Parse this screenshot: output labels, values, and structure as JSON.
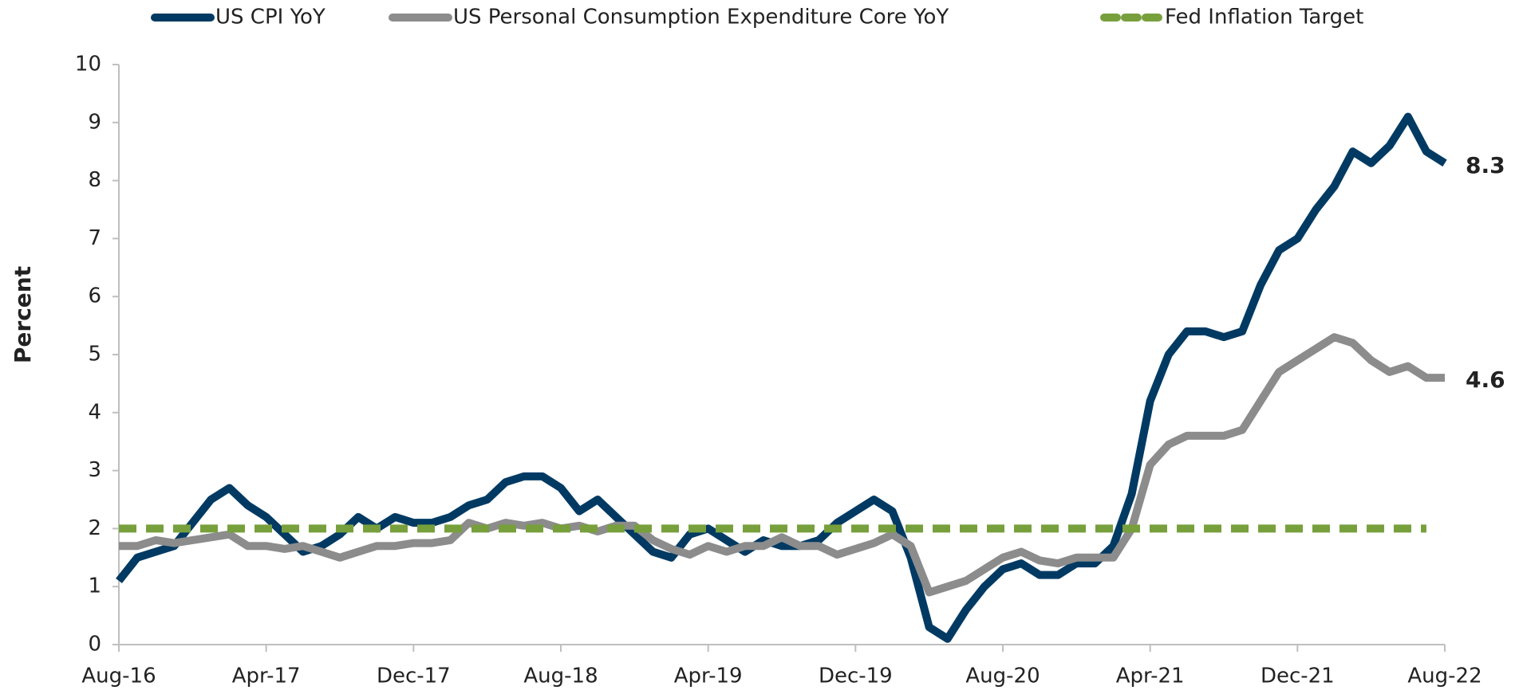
{
  "chart_data": {
    "type": "line",
    "y_label": "Percent",
    "categories": [
      "Aug-16",
      null,
      null,
      null,
      null,
      null,
      null,
      null,
      "Apr-17",
      null,
      null,
      null,
      null,
      null,
      null,
      null,
      "Dec-17",
      null,
      null,
      null,
      null,
      null,
      null,
      null,
      "Aug-18",
      null,
      null,
      null,
      null,
      null,
      null,
      null,
      "Apr-19",
      null,
      null,
      null,
      null,
      null,
      null,
      null,
      "Dec-19",
      null,
      null,
      null,
      null,
      null,
      null,
      null,
      "Aug-20",
      null,
      null,
      null,
      null,
      null,
      null,
      null,
      "Apr-21",
      null,
      null,
      null,
      null,
      null,
      null,
      null,
      "Dec-21",
      null,
      null,
      null,
      null,
      null,
      null,
      null,
      "Aug-22"
    ],
    "series": [
      {
        "name": "US CPI YoY",
        "color": "#003a63",
        "dash": false,
        "end_label": true,
        "values": [
          1.1,
          1.5,
          1.6,
          1.7,
          2.1,
          2.5,
          2.7,
          2.4,
          2.2,
          1.9,
          1.6,
          1.7,
          1.9,
          2.2,
          2.0,
          2.2,
          2.1,
          2.1,
          2.2,
          2.4,
          2.5,
          2.8,
          2.9,
          2.9,
          2.7,
          2.3,
          2.5,
          2.2,
          1.9,
          1.6,
          1.5,
          1.9,
          2.0,
          1.8,
          1.6,
          1.8,
          1.7,
          1.7,
          1.8,
          2.1,
          2.3,
          2.5,
          2.3,
          1.5,
          0.3,
          0.1,
          0.6,
          1.0,
          1.3,
          1.4,
          1.2,
          1.2,
          1.4,
          1.4,
          1.7,
          2.6,
          4.2,
          5.0,
          5.4,
          5.4,
          5.3,
          5.4,
          6.2,
          6.8,
          7.0,
          7.5,
          7.9,
          8.5,
          8.3,
          8.6,
          9.1,
          8.5,
          8.3
        ]
      },
      {
        "name": "US Personal Consumption Expenditure Core YoY",
        "color": "#8c8c8c",
        "dash": false,
        "end_label": true,
        "values": [
          1.7,
          1.7,
          1.8,
          1.75,
          1.8,
          1.85,
          1.9,
          1.7,
          1.7,
          1.65,
          1.7,
          1.6,
          1.5,
          1.6,
          1.7,
          1.7,
          1.75,
          1.75,
          1.8,
          2.1,
          2.0,
          2.1,
          2.05,
          2.1,
          2.0,
          2.05,
          1.95,
          2.05,
          2.05,
          1.8,
          1.65,
          1.55,
          1.7,
          1.6,
          1.7,
          1.7,
          1.85,
          1.7,
          1.7,
          1.55,
          1.65,
          1.75,
          1.9,
          1.7,
          0.9,
          1.0,
          1.1,
          1.3,
          1.5,
          1.6,
          1.45,
          1.4,
          1.5,
          1.5,
          1.5,
          2.0,
          3.1,
          3.45,
          3.6,
          3.6,
          3.6,
          3.7,
          4.2,
          4.7,
          4.9,
          5.1,
          5.3,
          5.2,
          4.9,
          4.7,
          4.8,
          4.6,
          4.6
        ]
      },
      {
        "name": "Fed Inflation Target",
        "color": "#77a03c",
        "dash": true,
        "end_label": false,
        "values": [
          2,
          2,
          2,
          2,
          2,
          2,
          2,
          2,
          2,
          2,
          2,
          2,
          2,
          2,
          2,
          2,
          2,
          2,
          2,
          2,
          2,
          2,
          2,
          2,
          2,
          2,
          2,
          2,
          2,
          2,
          2,
          2,
          2,
          2,
          2,
          2,
          2,
          2,
          2,
          2,
          2,
          2,
          2,
          2,
          2,
          2,
          2,
          2,
          2,
          2,
          2,
          2,
          2,
          2,
          2,
          2,
          2,
          2,
          2,
          2,
          2,
          2,
          2,
          2,
          2,
          2,
          2,
          2,
          2,
          2,
          2,
          2,
          null
        ]
      }
    ],
    "ylim": [
      0,
      10
    ],
    "yticks": [
      0,
      1,
      2,
      3,
      4,
      5,
      6,
      7,
      8,
      9,
      10
    ],
    "grid": false,
    "legend": "top"
  }
}
